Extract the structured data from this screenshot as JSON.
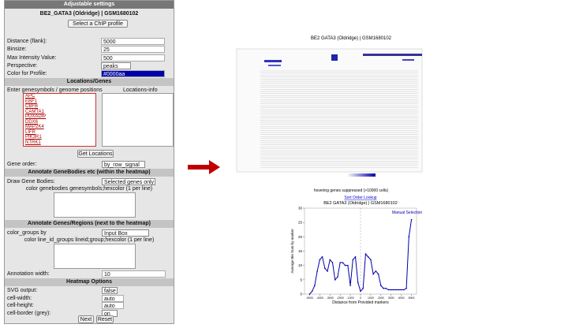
{
  "settings": {
    "title": "Adjustable settings",
    "profile": "BE2_GATA3 (Oldridge) | GSM1680102",
    "select_button": "Select a ChIP profile",
    "profile_fields": [
      {
        "label": "Distance (flank):",
        "value": "5000"
      },
      {
        "label": "Binsize:",
        "value": "25"
      },
      {
        "label": "Max Intensity Value:",
        "value": "500"
      },
      {
        "label": "Perspective:",
        "selected": "peaks"
      },
      {
        "label": "Color for Profile:",
        "value": "#0000aa"
      }
    ],
    "locations": {
      "title": "Locations/Genes",
      "genes_label": "Enter genesymbols / genome positions",
      "info_label": "Locations-info",
      "genes": [
        "APC",
        "EBF1",
        "CBFB",
        "CAMTA1",
        "PDXADIP",
        "DDX6",
        "MAP2K4",
        "LIFR",
        "PIK3R1",
        "NTRK1"
      ],
      "button": "Get Locations",
      "order_label": "Gene order:",
      "order_selected": "by_row_signal"
    },
    "genebodies": {
      "title": "Annotate GeneBodies etc (within the heatmap)",
      "draw_label": "Draw Gene Bodies:",
      "draw_selected": "Selected genes only",
      "hint": "color genebodies genesymbols;hexcolor (1 per line)"
    },
    "regions": {
      "title": "Annotate Genes/Regions (next to the heatmap)",
      "group_label": "color_groups by",
      "group_selected": "Input Box",
      "hint": "color line_id_groups lineid;group;hexcolor (1 per line)",
      "width_label": "Annotation width:",
      "width_value": "10"
    },
    "heatmap": {
      "title": "Heatmap Options",
      "fields": [
        {
          "label": "SVG output:",
          "selected": "false"
        },
        {
          "label": "cell-width:",
          "value": "auto"
        },
        {
          "label": "cell-height:",
          "value": "auto"
        },
        {
          "label": "cell-border (grey):",
          "selected": "on"
        }
      ]
    },
    "buttons": [
      "Next",
      "Reset"
    ]
  },
  "heatmap_image": {
    "title": "BE2 GATA3 (Oldridge) | GSM1680102",
    "note": "hovering genes suppressed (>10000 cells)"
  },
  "plot": {
    "type": "line",
    "link": "Sort Order Lookup",
    "title": "BE2 GATA3 (Oldridge) | GSM1680102",
    "x_label": "Distance from Provided markers",
    "y_label": "Average Bin Sum by marker",
    "x": [
      -5000,
      -4750,
      -4500,
      -4250,
      -4000,
      -3750,
      -3500,
      -3250,
      -3000,
      -2750,
      -2500,
      -2250,
      -2000,
      -1750,
      -1500,
      -1250,
      -1000,
      -750,
      -500,
      -250,
      0,
      250,
      500,
      750,
      1000,
      1250,
      1500,
      1750,
      2000,
      2250,
      2500,
      2750,
      3000,
      3250,
      3500,
      3750,
      4000,
      4250,
      4500,
      4750,
      5000
    ],
    "series": [
      {
        "name": "Manual Selection",
        "color": "#0000aa",
        "values": [
          0,
          1,
          3,
          8,
          12,
          13,
          9,
          8,
          12,
          11,
          5,
          6,
          11,
          11,
          10,
          10,
          3,
          12,
          13,
          4,
          1,
          2,
          14,
          13,
          12,
          7,
          8,
          7,
          3,
          2,
          2,
          1.5,
          1.5,
          1.5,
          1.5,
          1.5,
          1.5,
          1.5,
          2,
          20,
          26
        ]
      }
    ],
    "xlim": [
      -5500,
      5500
    ],
    "ylim": [
      0,
      30
    ],
    "xticks": [
      -5000,
      -4000,
      -3000,
      -2000,
      -1000,
      0,
      1000,
      2000,
      3000,
      4000,
      5000
    ],
    "yticks": [
      0,
      5,
      10,
      15,
      20,
      25,
      30
    ]
  }
}
